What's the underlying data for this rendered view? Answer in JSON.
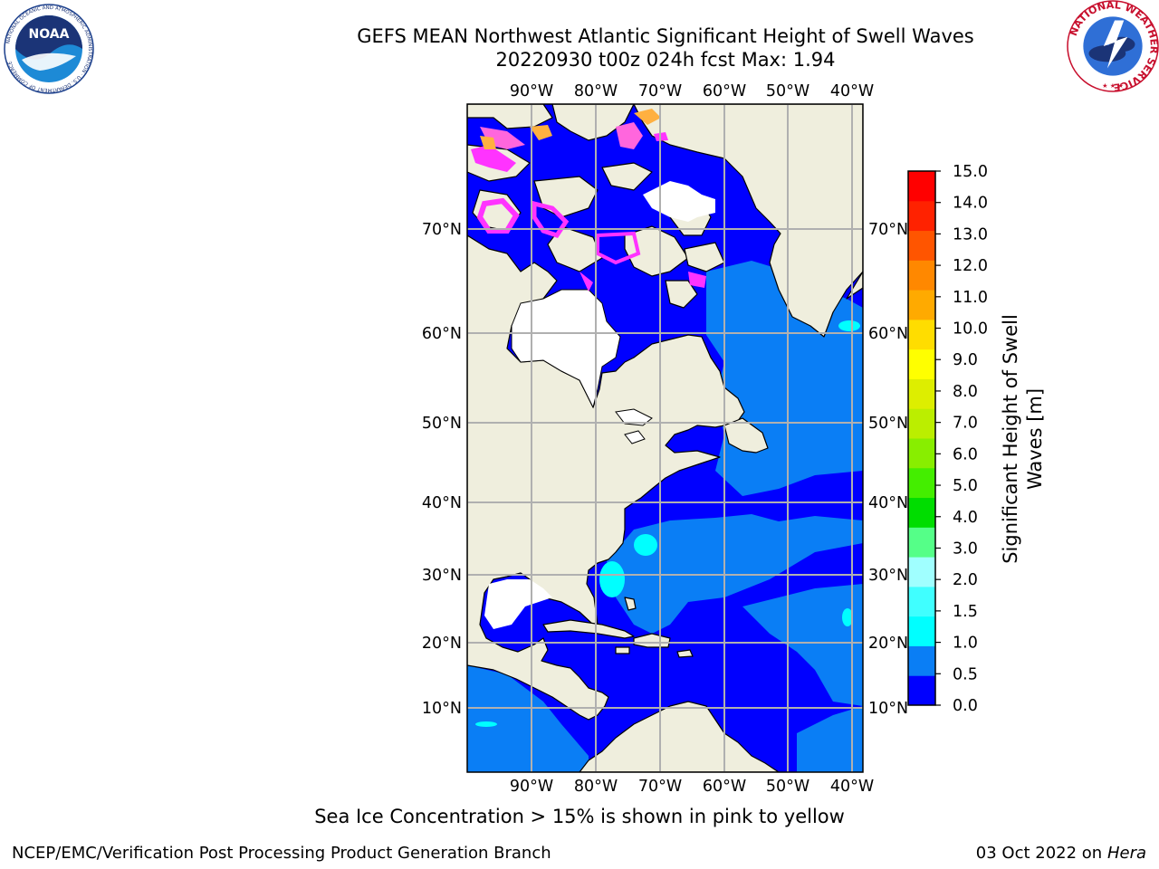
{
  "header": {
    "title_line1": "GEFS MEAN Northwest Atlantic Significant Height of Swell Waves",
    "title_line2": "20220930 t00z 024h fcst   Max: 1.94"
  },
  "logos": {
    "noaa": {
      "text": "NOAA",
      "ring_text": "NATIONAL OCEANIC AND ATMOSPHERIC ADMINISTRATION · U.S. DEPARTMENT OF COMMERCE"
    },
    "nws": {
      "ring_text": "NATIONAL WEATHER SERVICE"
    }
  },
  "map": {
    "top_lon_labels": [
      "90°W",
      "80°W",
      "70°W",
      "60°W",
      "50°W",
      "40°W"
    ],
    "bottom_lon_labels": [
      "90°W",
      "80°W",
      "70°W",
      "60°W",
      "50°W",
      "40°W"
    ],
    "left_lat_labels": [
      "70°N",
      "60°N",
      "50°N",
      "40°N",
      "30°N",
      "20°N",
      "10°N"
    ],
    "right_lat_labels": [
      "70°N",
      "60°N",
      "50°N",
      "40°N",
      "30°N",
      "20°N",
      "10°N"
    ],
    "colors": {
      "land": "#efeedd",
      "swell_0_05": "#0000ff",
      "swell_05_10": "#0a7ef5",
      "swell_10_15": "#00ffff",
      "sea_ice": "#ff33ff",
      "sea_ice_high": "#ffc040",
      "grid": "#b0b0b0"
    }
  },
  "colorbar": {
    "label_line1": "Significant Height of Swell",
    "label_line2": "Waves [m]",
    "ticks": [
      "0.0",
      "0.5",
      "1.0",
      "1.5",
      "2.0",
      "3.0",
      "4.0",
      "5.0",
      "6.0",
      "7.0",
      "8.0",
      "9.0",
      "10.0",
      "11.0",
      "12.0",
      "13.0",
      "14.0",
      "15.0"
    ],
    "colors": [
      "#0000ff",
      "#0a7ef5",
      "#00ffff",
      "#40ffff",
      "#a0ffff",
      "#55ff88",
      "#00dd00",
      "#44ee00",
      "#88ee00",
      "#bbee00",
      "#ddee00",
      "#ffff00",
      "#ffdd00",
      "#ffaa00",
      "#ff8800",
      "#ff5500",
      "#ff2200",
      "#ff0000"
    ]
  },
  "footer": {
    "note": "Sea Ice Concentration > 15% is shown in pink to yellow",
    "credit": "NCEP/EMC/Verification Post Processing Product Generation Branch",
    "date": "03 Oct 2022 on",
    "host": "Hera"
  }
}
